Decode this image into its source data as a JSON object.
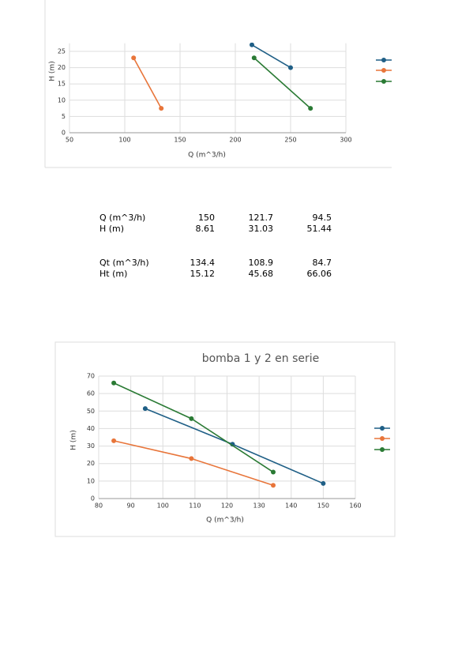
{
  "chart_data": [
    {
      "type": "line",
      "xlabel": "Q (m^3/h)",
      "ylabel": "H (m)",
      "xlim": [
        50,
        300
      ],
      "xticks": [
        50,
        100,
        150,
        200,
        250,
        300
      ],
      "ylim": [
        0,
        27.5
      ],
      "yticks": [
        0,
        5,
        10,
        15,
        20,
        25
      ],
      "grid": true,
      "series": [
        {
          "color": "#1f5f86",
          "x": [
            215,
            250
          ],
          "values": [
            27,
            20
          ]
        },
        {
          "color": "#e8753a",
          "x": [
            108,
            133
          ],
          "values": [
            23,
            7.5
          ]
        },
        {
          "color": "#2a7a34",
          "x": [
            217,
            268
          ],
          "values": [
            23,
            7.5
          ]
        }
      ]
    },
    {
      "type": "line",
      "title": "bomba 1 y 2 en serie",
      "xlabel": "Q (m^3/h)",
      "ylabel": "H (m)",
      "xlim": [
        80,
        160
      ],
      "xticks": [
        80,
        90,
        100,
        110,
        120,
        130,
        140,
        150,
        160
      ],
      "ylim": [
        0,
        70
      ],
      "yticks": [
        0,
        10,
        20,
        30,
        40,
        50,
        60,
        70
      ],
      "grid": true,
      "series": [
        {
          "color": "#1f5f86",
          "x": [
            94.5,
            121.7,
            150
          ],
          "values": [
            51.44,
            31.03,
            8.61
          ]
        },
        {
          "color": "#e8753a",
          "x": [
            84.7,
            108.9,
            134.4
          ],
          "values": [
            33.03,
            22.84,
            7.56
          ]
        },
        {
          "color": "#2a7a34",
          "x": [
            84.7,
            108.9,
            134.4
          ],
          "values": [
            66.06,
            45.68,
            15.12
          ]
        }
      ]
    }
  ],
  "table": {
    "rows": [
      [
        "Q (m^3/h)",
        150,
        121.7,
        94.5
      ],
      [
        "H (m)",
        8.61,
        31.03,
        51.44
      ],
      [
        "Qt (m^3/h)",
        134.4,
        108.9,
        84.7
      ],
      [
        "Ht (m)",
        15.12,
        45.68,
        66.06
      ]
    ]
  }
}
